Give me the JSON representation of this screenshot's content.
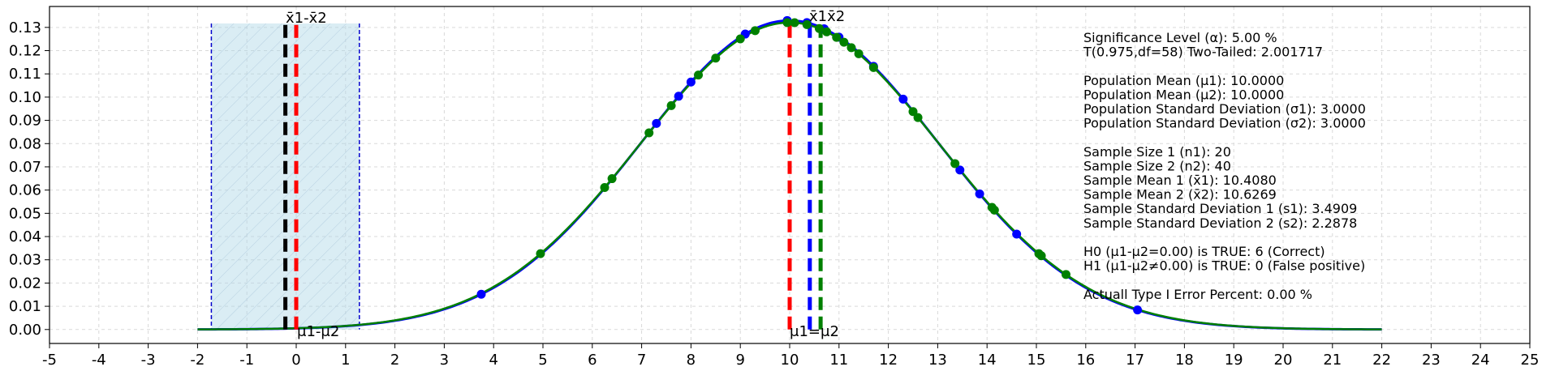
{
  "chart_data": {
    "type": "line",
    "title": "",
    "xlabel": "",
    "ylabel": "",
    "xlim": [
      -5,
      25
    ],
    "ylim": [
      -0.006,
      0.139
    ],
    "x_ticks": [
      -5,
      -4,
      -3,
      -2,
      -1,
      0,
      1,
      2,
      3,
      4,
      5,
      6,
      7,
      8,
      9,
      10,
      11,
      12,
      13,
      14,
      15,
      16,
      17,
      18,
      19,
      20,
      21,
      22,
      23,
      24,
      25
    ],
    "y_ticks": [
      0.0,
      0.01,
      0.02,
      0.03,
      0.04,
      0.05,
      0.06,
      0.07,
      0.08,
      0.09,
      0.1,
      0.11,
      0.12,
      0.13
    ],
    "grid": true,
    "curve_x_range": [
      -2,
      22
    ],
    "curve_mean": 10,
    "curve_sd_blue": 3.0,
    "curve_sd_green": 3.02,
    "ci_band": {
      "x_from": -1.72,
      "x_to": 1.28,
      "y_top": 0.1317
    },
    "vlines": [
      {
        "name": "black-dashed",
        "x": -0.22,
        "color": "#000000"
      },
      {
        "name": "red-dashed-left",
        "x": 0.0,
        "color": "#ff0000"
      },
      {
        "name": "red-dashed-mu",
        "x": 10.0,
        "color": "#ff0000"
      },
      {
        "name": "blue-dashed-xbar1",
        "x": 10.408,
        "color": "#0000ff"
      },
      {
        "name": "green-dashed-xbar2",
        "x": 10.627,
        "color": "#008000"
      }
    ],
    "points_blue_x": [
      3.75,
      7.3,
      7.75,
      8.0,
      9.1,
      9.95,
      10.35,
      10.7,
      11.0,
      11.7,
      12.3,
      13.45,
      13.85,
      14.6,
      17.05
    ],
    "points_green_x": [
      4.95,
      6.25,
      6.4,
      7.15,
      7.6,
      8.15,
      8.5,
      9.0,
      9.3,
      9.95,
      10.1,
      10.35,
      10.6,
      10.75,
      10.95,
      11.1,
      11.25,
      11.4,
      11.7,
      12.5,
      12.6,
      13.35,
      14.1,
      14.15,
      15.05,
      15.1,
      15.6
    ],
    "annotations": {
      "xbar_diff": "x̄1-x̄2",
      "mu_diff": "μ1-μ2",
      "xbar_pair": "x̄1x̄2",
      "mu_equal": "μ1=μ2"
    },
    "info_lines": [
      "Significance Level (α): 5.00 %",
      "T(0.975,df=58) Two-Tailed: 2.001717",
      "",
      "Population Mean (μ1): 10.0000",
      "Population Mean (μ2): 10.0000",
      "Population Standard Deviation (σ1): 3.0000",
      "Population Standard Deviation (σ2): 3.0000",
      "",
      "Sample Size 1 (n1): 20",
      "Sample Size 2 (n2): 40",
      "Sample Mean 1 (x̄1): 10.4080",
      "Sample Mean 2 (x̄2): 10.6269",
      "Sample Standard Deviation 1 (s1): 3.4909",
      "Sample Standard Deviation 2 (s2): 2.2878",
      "",
      "H0 (μ1-μ2=0.00) is TRUE: 6 (Correct)",
      "H1 (μ1-μ2≠0.00) is TRUE: 0 (False positive)",
      "",
      "Actuall Type I Error Percent: 0.00 %"
    ],
    "colors": {
      "blue": "#0000ff",
      "green": "#008000",
      "red": "#ff0000",
      "black": "#000000",
      "band_fill": "#add8e6",
      "band_edge": "#0000cc",
      "grid": "#d9d9d9"
    }
  }
}
